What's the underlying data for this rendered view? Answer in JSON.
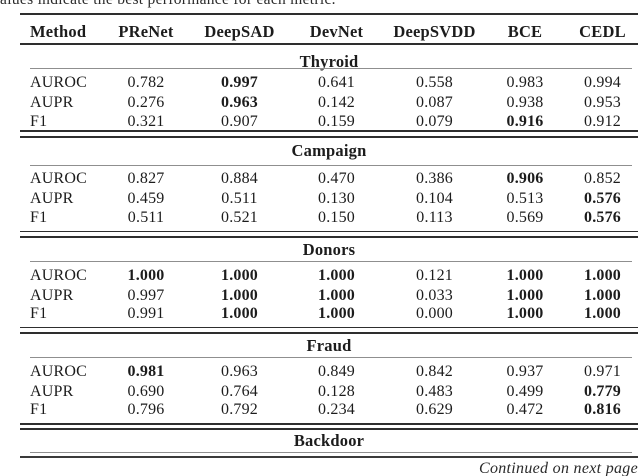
{
  "caption_fragment": "values indicate the best performance for each metric.",
  "continued_note": "Continued on next page",
  "table": {
    "columns": [
      "Method",
      "PReNet",
      "DeepSAD",
      "DevNet",
      "DeepSVDD",
      "BCE",
      "CEDL"
    ],
    "sections": [
      {
        "name": "Thyroid",
        "rows": [
          {
            "metric": "AUROC",
            "values": [
              "0.782",
              "0.997",
              "0.641",
              "0.558",
              "0.983",
              "0.994"
            ],
            "bold": [
              1
            ]
          },
          {
            "metric": "AUPR",
            "values": [
              "0.276",
              "0.963",
              "0.142",
              "0.087",
              "0.938",
              "0.953"
            ],
            "bold": [
              1
            ]
          },
          {
            "metric": "F1",
            "values": [
              "0.321",
              "0.907",
              "0.159",
              "0.079",
              "0.916",
              "0.912"
            ],
            "bold": [
              4
            ]
          }
        ]
      },
      {
        "name": "Campaign",
        "rows": [
          {
            "metric": "AUROC",
            "values": [
              "0.827",
              "0.884",
              "0.470",
              "0.386",
              "0.906",
              "0.852"
            ],
            "bold": [
              4
            ]
          },
          {
            "metric": "AUPR",
            "values": [
              "0.459",
              "0.511",
              "0.130",
              "0.104",
              "0.513",
              "0.576"
            ],
            "bold": [
              5
            ]
          },
          {
            "metric": "F1",
            "values": [
              "0.511",
              "0.521",
              "0.150",
              "0.113",
              "0.569",
              "0.576"
            ],
            "bold": [
              5
            ]
          }
        ]
      },
      {
        "name": "Donors",
        "rows": [
          {
            "metric": "AUROC",
            "values": [
              "1.000",
              "1.000",
              "1.000",
              "0.121",
              "1.000",
              "1.000"
            ],
            "bold": [
              0,
              1,
              2,
              4,
              5
            ]
          },
          {
            "metric": "AUPR",
            "values": [
              "0.997",
              "1.000",
              "1.000",
              "0.033",
              "1.000",
              "1.000"
            ],
            "bold": [
              1,
              2,
              4,
              5
            ]
          },
          {
            "metric": "F1",
            "values": [
              "0.991",
              "1.000",
              "1.000",
              "0.000",
              "1.000",
              "1.000"
            ],
            "bold": [
              1,
              2,
              4,
              5
            ]
          }
        ]
      },
      {
        "name": "Fraud",
        "rows": [
          {
            "metric": "AUROC",
            "values": [
              "0.981",
              "0.963",
              "0.849",
              "0.842",
              "0.937",
              "0.971"
            ],
            "bold": [
              0
            ]
          },
          {
            "metric": "AUPR",
            "values": [
              "0.690",
              "0.764",
              "0.128",
              "0.483",
              "0.499",
              "0.779"
            ],
            "bold": [
              5
            ]
          },
          {
            "metric": "F1",
            "values": [
              "0.796",
              "0.792",
              "0.234",
              "0.629",
              "0.472",
              "0.816"
            ],
            "bold": [
              5
            ]
          }
        ]
      },
      {
        "name": "Backdoor",
        "rows": []
      }
    ]
  },
  "colors": {
    "background": "#ffffff",
    "text": "#1c1c1c",
    "rule": "#2e2e2e",
    "thin_rule": "#8f8f8f"
  }
}
